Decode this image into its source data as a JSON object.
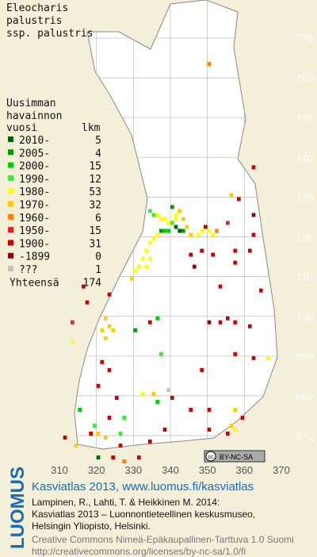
{
  "title": [
    "Eleocharis",
    "palustris",
    "ssp. palustris"
  ],
  "legend": {
    "title": [
      "Uusimman",
      "havainnon",
      "vuosi"
    ],
    "count_header": "lkm",
    "entries": [
      {
        "label": "2010-",
        "count": 5,
        "color": "#006600"
      },
      {
        "label": "2005-",
        "count": 4,
        "color": "#009900"
      },
      {
        "label": "2000-",
        "count": 15,
        "color": "#00cc00"
      },
      {
        "label": "1990-",
        "count": 12,
        "color": "#33ee33"
      },
      {
        "label": "1980-",
        "count": 53,
        "color": "#ffff00"
      },
      {
        "label": "1970-",
        "count": 32,
        "color": "#ffcc00"
      },
      {
        "label": "1960-",
        "count": 6,
        "color": "#ff8000"
      },
      {
        "label": "1950-",
        "count": 15,
        "color": "#e42020"
      },
      {
        "label": "1900-",
        "count": 31,
        "color": "#cc0000"
      },
      {
        "label": "-1899",
        "count": 0,
        "color": "#990000"
      },
      {
        "label": "???",
        "count": 1,
        "color": "#c0c0c0"
      }
    ],
    "total_label": "Yhteensä",
    "total": 174
  },
  "map": {
    "xticks": [
      310,
      320,
      330,
      340,
      350,
      360,
      370
    ],
    "yticks": [
      770,
      760,
      750,
      740,
      730,
      720,
      710,
      700,
      690,
      680,
      670
    ],
    "points": [
      [
        350,
        763,
        6
      ],
      [
        334,
        726,
        3
      ],
      [
        335,
        725,
        3
      ],
      [
        336,
        725,
        4
      ],
      [
        337,
        724,
        4
      ],
      [
        338,
        724,
        4
      ],
      [
        339,
        723,
        4
      ],
      [
        340,
        727,
        1
      ],
      [
        340,
        723,
        3
      ],
      [
        341,
        722,
        0
      ],
      [
        342,
        721,
        0
      ],
      [
        343,
        721,
        1
      ],
      [
        339,
        721,
        2
      ],
      [
        338,
        721,
        2
      ],
      [
        337,
        721,
        1
      ],
      [
        336,
        720,
        4
      ],
      [
        335,
        719,
        4
      ],
      [
        334,
        718,
        4
      ],
      [
        333,
        716,
        4
      ],
      [
        332,
        714,
        4
      ],
      [
        331,
        712,
        4
      ],
      [
        330,
        711,
        4
      ],
      [
        329,
        709,
        5
      ],
      [
        341,
        724,
        4
      ],
      [
        341,
        725,
        4
      ],
      [
        342,
        726,
        5
      ],
      [
        343,
        724,
        5
      ],
      [
        344,
        722,
        5
      ],
      [
        345,
        720,
        5
      ],
      [
        347,
        720,
        4
      ],
      [
        348,
        721,
        4
      ],
      [
        350,
        721,
        4
      ],
      [
        351,
        720,
        4
      ],
      [
        352,
        721,
        6
      ],
      [
        349,
        722,
        8
      ],
      [
        357,
        716,
        8
      ],
      [
        355,
        723,
        7
      ],
      [
        358,
        729,
        8
      ],
      [
        362,
        737,
        8
      ],
      [
        356,
        730,
        5
      ],
      [
        362,
        725,
        9
      ],
      [
        362,
        720,
        8
      ],
      [
        361,
        716,
        8
      ],
      [
        357,
        713,
        8
      ],
      [
        351,
        715,
        8
      ],
      [
        346,
        712,
        9
      ],
      [
        345,
        715,
        8
      ],
      [
        348,
        716,
        8
      ],
      [
        334,
        714,
        4
      ],
      [
        333,
        712,
        4
      ],
      [
        353,
        707,
        8
      ],
      [
        364,
        706,
        8
      ],
      [
        323,
        705,
        8
      ],
      [
        317,
        703,
        8
      ],
      [
        316,
        707,
        8
      ],
      [
        313,
        698,
        7
      ],
      [
        313,
        693,
        4
      ],
      [
        322,
        699,
        5
      ],
      [
        323,
        697,
        5
      ],
      [
        324,
        696,
        5
      ],
      [
        321,
        696,
        5
      ],
      [
        322,
        694,
        5
      ],
      [
        330,
        696,
        1
      ],
      [
        334,
        698,
        8
      ],
      [
        336,
        699,
        2
      ],
      [
        337,
        690,
        3
      ],
      [
        350,
        698,
        9
      ],
      [
        355,
        699,
        8
      ],
      [
        353,
        698,
        8
      ],
      [
        361,
        697,
        8
      ],
      [
        357,
        698,
        8
      ],
      [
        362,
        689,
        8
      ],
      [
        357,
        690,
        8
      ],
      [
        366,
        689,
        4
      ],
      [
        348,
        686,
        8
      ],
      [
        320,
        682,
        8
      ],
      [
        325,
        679,
        8
      ],
      [
        321,
        688,
        8
      ],
      [
        323,
        686,
        8
      ],
      [
        315,
        676,
        2
      ],
      [
        323,
        674,
        8
      ],
      [
        327,
        674,
        3
      ],
      [
        332,
        680,
        4
      ],
      [
        335,
        680,
        5
      ],
      [
        336,
        678,
        2
      ],
      [
        339,
        681,
        10
      ],
      [
        340,
        679,
        8
      ],
      [
        345,
        676,
        8
      ],
      [
        350,
        676,
        8
      ],
      [
        357,
        676,
        5
      ],
      [
        359,
        674,
        8
      ],
      [
        350,
        671,
        8
      ],
      [
        338,
        671,
        8
      ],
      [
        334,
        668,
        8
      ],
      [
        326,
        667,
        8
      ],
      [
        319,
        672,
        3
      ],
      [
        318,
        670,
        8
      ],
      [
        320,
        670,
        5
      ],
      [
        322,
        669,
        5
      ],
      [
        326,
        670,
        3
      ],
      [
        311,
        669,
        8
      ],
      [
        314,
        667,
        5
      ],
      [
        320,
        664,
        0
      ],
      [
        324,
        664,
        8
      ],
      [
        327,
        663,
        6
      ],
      [
        331,
        664,
        8
      ],
      [
        355,
        670,
        8
      ],
      [
        357,
        671,
        4
      ],
      [
        356,
        672,
        5
      ]
    ]
  },
  "badge": {
    "cc": "cc",
    "license": "BY-NC-SA"
  },
  "footer": {
    "logo": "LUOMUS",
    "heading": "Kasviatlas 2013, www.luomus.fi/kasviatlas",
    "citation": [
      "Lampinen, R., Lahti, T. & Heikkinen M. 2014:",
      "Kasviatlas 2013 – Luonnontieteellinen keskusmuseo,",
      "Helsingin Yliopisto, Helsinki."
    ],
    "license": [
      "Creative Commons Nimeä-Epäkaupallinen-Tarttuva 1.0 Suomi",
      "http://creativecommons.org/licenses/by-nc-sa/1.0/fi"
    ]
  }
}
